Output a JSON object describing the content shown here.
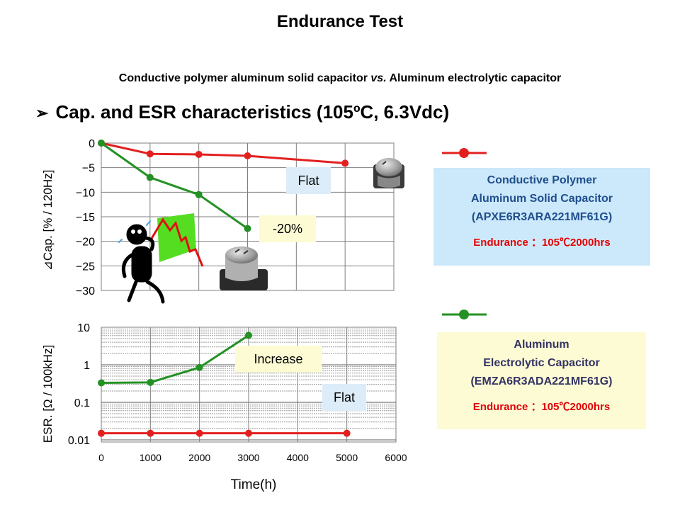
{
  "title": "Endurance Test",
  "subtitle": "Conductive polymer aluminum solid capacitor vs. Aluminum electrolytic capacitor",
  "subtitle_parts": [
    "Conductive polymer aluminum solid capacitor ",
    "vs.",
    " Aluminum electrolytic capacitor"
  ],
  "section_heading": "Cap. and ESR characteristics (105ºC, 6.3Vdc)",
  "section_bullet": "➢",
  "colors": {
    "polymer": "#e32020",
    "electrolytic": "#239123",
    "polymer_box": "#cce8fb",
    "electrolytic_box": "#fdfbd3",
    "endurance_text": "#e00000"
  },
  "legend": {
    "polymer": {
      "line1": "Conductive Polymer",
      "line2": "Aluminum Solid Capacitor",
      "line3": "(APXE6R3ARA221MF61G)",
      "endurance": "Endurance ：105℃2000hrs"
    },
    "electrolytic": {
      "line1": "Aluminum",
      "line2": "Electrolytic Capacitor",
      "line3": "(EMZA6R3ADA221MF61G)",
      "endurance": "Endurance ：105℃2000hrs"
    }
  },
  "annotations": {
    "cap_flat": "Flat",
    "cap_drop": "-20%",
    "esr_increase": "Increase",
    "esr_flat": "Flat"
  },
  "chart_data": [
    {
      "type": "line",
      "ylabel": "⊿Cap. [% / 120Hz]",
      "xlim": [
        0,
        6000
      ],
      "ylim": [
        -30,
        0
      ],
      "yticks": [
        "0",
        "−5",
        "−10",
        "−15",
        "−20",
        "−25",
        "−30"
      ],
      "ytick_values": [
        0,
        -5,
        -10,
        -15,
        -20,
        -25,
        -30
      ],
      "grid": true,
      "series": [
        {
          "color": "#e32020",
          "x": [
            0,
            1000,
            2000,
            3000,
            5000
          ],
          "y": [
            0,
            -2.2,
            -2.3,
            -2.6,
            -4.1
          ]
        },
        {
          "color": "#239123",
          "x": [
            0,
            1000,
            2000,
            3000
          ],
          "y": [
            0,
            -7,
            -10.5,
            -17.4
          ]
        }
      ]
    },
    {
      "type": "line",
      "ylabel": "ESR. [Ω / 100kHz]",
      "xlabel": "Time(h)",
      "xlim": [
        0,
        6000
      ],
      "ylim": [
        0.01,
        10
      ],
      "yscale": "log",
      "yticks": [
        "10",
        "1",
        "0.1",
        "0.01"
      ],
      "ytick_values": [
        10,
        1,
        0.1,
        0.01
      ],
      "xticks": [
        "0",
        "1000",
        "2000",
        "3000",
        "4000",
        "5000",
        "6000"
      ],
      "xtick_values": [
        0,
        1000,
        2000,
        3000,
        4000,
        5000,
        6000
      ],
      "grid": true,
      "series": [
        {
          "color": "#e32020",
          "x": [
            0,
            1000,
            2000,
            3000,
            5000
          ],
          "y": [
            0.015,
            0.015,
            0.015,
            0.015,
            0.015
          ]
        },
        {
          "color": "#239123",
          "x": [
            0,
            1000,
            2000,
            3000
          ],
          "y": [
            0.33,
            0.34,
            0.85,
            6.1
          ]
        }
      ]
    }
  ]
}
